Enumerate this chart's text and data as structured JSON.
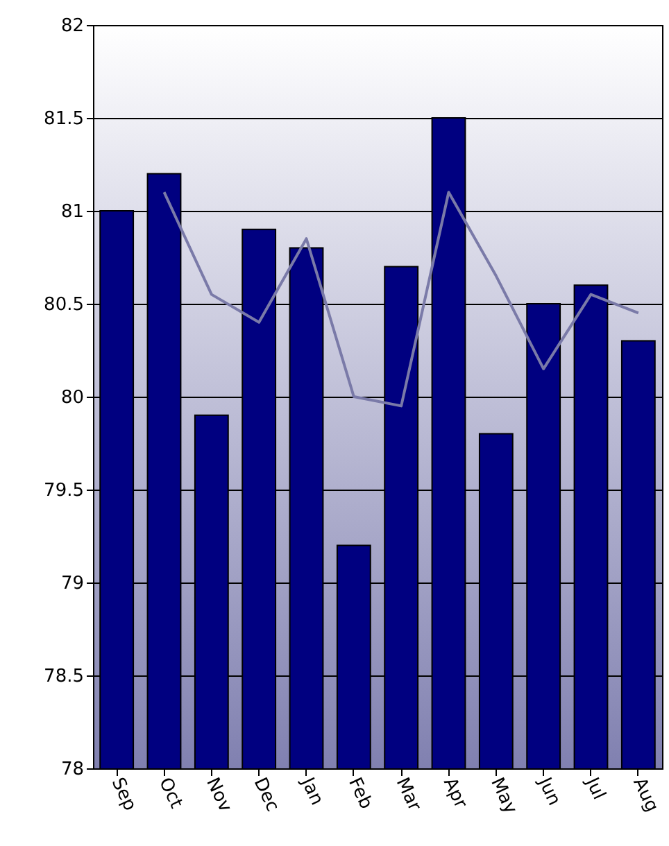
{
  "chart_data": {
    "type": "bar",
    "categories": [
      "Sep",
      "Oct",
      "Nov",
      "Dec",
      "Jan",
      "Feb",
      "Mar",
      "Apr",
      "May",
      "Jun",
      "Jul",
      "Aug"
    ],
    "series": [
      {
        "color": "#000080",
        "values": [
          81,
          81.2,
          79.9,
          80.9,
          80.8,
          79.2,
          80.7,
          81.5,
          79.8,
          80.5,
          80.6,
          80.3
        ]
      },
      {
        "type": "line",
        "color": "#7a7aa8",
        "values": [
          null,
          81.1,
          80.55,
          80.4,
          80.85,
          80.0,
          79.95,
          81.1,
          80.65,
          80.15,
          80.55,
          80.45
        ]
      }
    ],
    "ylim": [
      78,
      82
    ],
    "yticks": [
      78,
      78.5,
      79,
      79.5,
      80,
      80.5,
      81,
      81.5,
      82
    ],
    "grid": "y"
  }
}
